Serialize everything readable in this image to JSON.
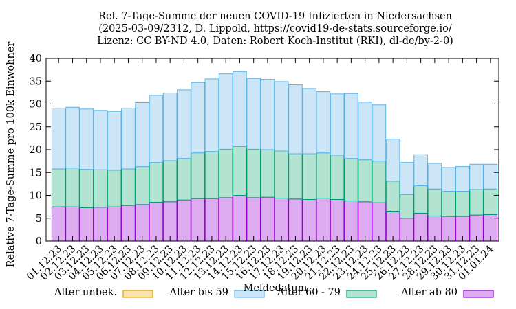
{
  "chart_data": {
    "type": "bar",
    "stacked": true,
    "title": [
      "Rel. 7-Tage-Summe der neuen COVID-19 Infizierten in Niedersachsen",
      "(2025-03-09/2312, D. Lippold, https://covid19-de-stats.sourceforge.io/",
      "Lizenz: CC BY-ND 4.0, Daten: Robert Koch-Institut (RKI), dl-de/by-2-0)"
    ],
    "xlabel": "Meldedatum",
    "ylabel": "Relative 7-Tage-Summe pro 100k Einwohner",
    "ylim": [
      0,
      40
    ],
    "yticks": [
      0,
      5,
      10,
      15,
      20,
      25,
      30,
      35,
      40
    ],
    "categories": [
      "01.12.23",
      "02.12.23",
      "03.12.23",
      "04.12.23",
      "05.12.23",
      "06.12.23",
      "07.12.23",
      "08.12.23",
      "09.12.23",
      "10.12.23",
      "11.12.23",
      "12.12.23",
      "13.12.23",
      "14.12.23",
      "15.12.23",
      "16.12.23",
      "17.12.23",
      "18.12.23",
      "19.12.23",
      "20.12.23",
      "21.12.23",
      "22.12.23",
      "23.12.23",
      "24.12.23",
      "25.12.23",
      "26.12.23",
      "27.12.23",
      "28.12.23",
      "29.12.23",
      "30.12.23",
      "31.12.23",
      "01.01.24"
    ],
    "legend_position": "bottom",
    "series": [
      {
        "name": "Alter ab 80",
        "fill": "#dcabf0",
        "stroke": "#9400d3",
        "values": [
          7.5,
          7.5,
          7.3,
          7.4,
          7.5,
          7.8,
          8.0,
          8.5,
          8.6,
          9.0,
          9.3,
          9.3,
          9.5,
          10.0,
          9.5,
          9.6,
          9.4,
          9.2,
          9.1,
          9.4,
          9.1,
          8.8,
          8.6,
          8.4,
          6.4,
          5.0,
          6.1,
          5.5,
          5.4,
          5.4,
          5.7,
          5.8
        ]
      },
      {
        "name": "Alter 60 - 79",
        "fill": "#b3e3d1",
        "stroke": "#009e73",
        "values": [
          8.3,
          8.5,
          8.4,
          8.2,
          8.0,
          8.0,
          8.3,
          8.7,
          9.0,
          9.1,
          10.0,
          10.3,
          10.6,
          10.7,
          10.6,
          10.4,
          10.3,
          9.9,
          10.0,
          9.9,
          9.7,
          9.3,
          9.2,
          9.1,
          6.7,
          5.2,
          6.0,
          5.9,
          5.5,
          5.5,
          5.6,
          5.6
        ]
      },
      {
        "name": "Alter bis 59",
        "fill": "#cce6f8",
        "stroke": "#56b4e9",
        "values": [
          13.3,
          13.3,
          13.2,
          13.0,
          12.9,
          13.3,
          14.0,
          14.7,
          14.8,
          15.0,
          15.4,
          15.9,
          16.5,
          16.4,
          15.5,
          15.4,
          15.2,
          15.1,
          14.3,
          13.4,
          13.4,
          14.2,
          12.6,
          12.3,
          9.2,
          7.0,
          6.8,
          5.6,
          5.2,
          5.4,
          5.5,
          5.4
        ]
      },
      {
        "name": "Alter unbek.",
        "fill": "#f9e4ac",
        "stroke": "#e69f00",
        "values": [
          0,
          0,
          0,
          0,
          0,
          0,
          0,
          0,
          0,
          0,
          0,
          0,
          0,
          0,
          0,
          0,
          0,
          0,
          0,
          0,
          0,
          0,
          0,
          0,
          0,
          0,
          0,
          0,
          0,
          0,
          0,
          0
        ]
      }
    ],
    "legend_order": [
      "Alter unbek.",
      "Alter bis 59",
      "Alter 60 - 79",
      "Alter ab 80"
    ]
  }
}
